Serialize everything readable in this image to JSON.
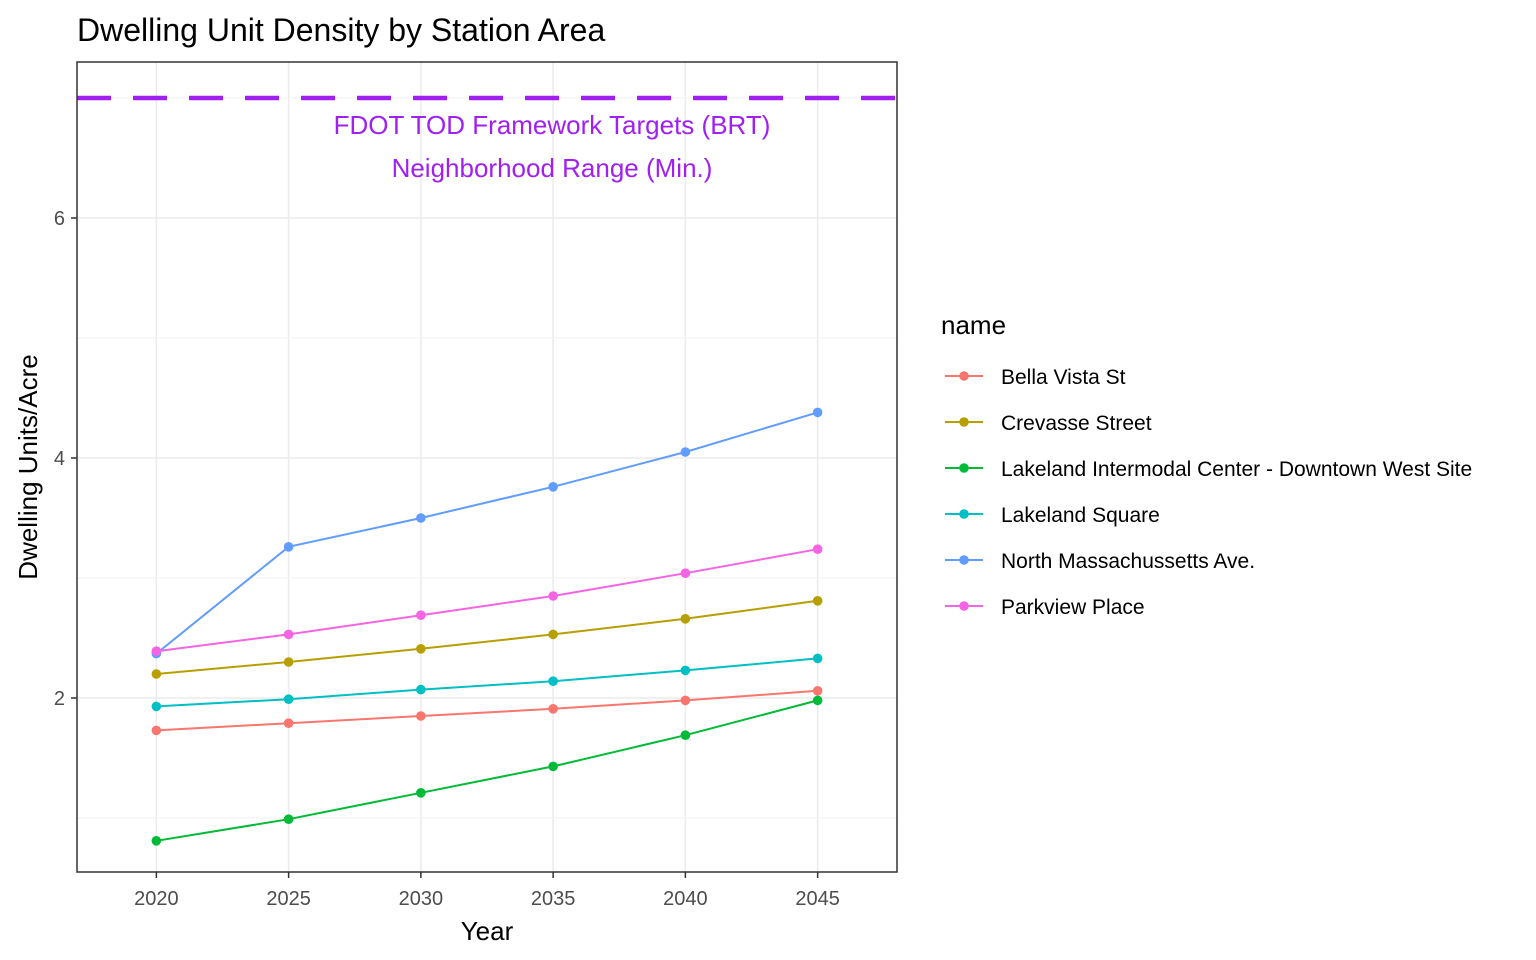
{
  "chart_data": {
    "type": "line",
    "title": "Dwelling Unit Density by Station Area",
    "xlabel": "Year",
    "ylabel": "Dwelling Units/Acre",
    "x": [
      2020,
      2025,
      2030,
      2035,
      2040,
      2045
    ],
    "xlim": [
      2017,
      2048
    ],
    "ylim": [
      0.55,
      7.3
    ],
    "y_ticks": [
      2,
      4,
      6
    ],
    "grid": true,
    "legend_title": "name",
    "legend_position": "right",
    "series": [
      {
        "name": "Bella Vista St",
        "color": "#F8766D",
        "values": [
          1.73,
          1.79,
          1.85,
          1.91,
          1.98,
          2.06
        ]
      },
      {
        "name": "Crevasse Street",
        "color": "#B79F00",
        "values": [
          2.2,
          2.3,
          2.41,
          2.53,
          2.66,
          2.81
        ]
      },
      {
        "name": "Lakeland Intermodal Center - Downtown West Site",
        "color": "#00BA38",
        "values": [
          0.81,
          0.99,
          1.21,
          1.43,
          1.69,
          1.98
        ]
      },
      {
        "name": "Lakeland Square",
        "color": "#00BFC4",
        "values": [
          1.93,
          1.99,
          2.07,
          2.14,
          2.23,
          2.33
        ]
      },
      {
        "name": "North Massachussetts Ave.",
        "color": "#619CFF",
        "values": [
          2.37,
          3.26,
          3.5,
          3.76,
          4.05,
          4.38
        ]
      },
      {
        "name": "Parkview Place",
        "color": "#F564E3",
        "values": [
          2.39,
          2.53,
          2.69,
          2.85,
          3.04,
          3.24
        ]
      }
    ],
    "reference_line": {
      "y": 7.0,
      "style": "dashed",
      "color": "#A020F0",
      "label_line1": "FDOT TOD Framework Targets (BRT)",
      "label_line2": "Neighborhood Range (Min.)"
    }
  }
}
